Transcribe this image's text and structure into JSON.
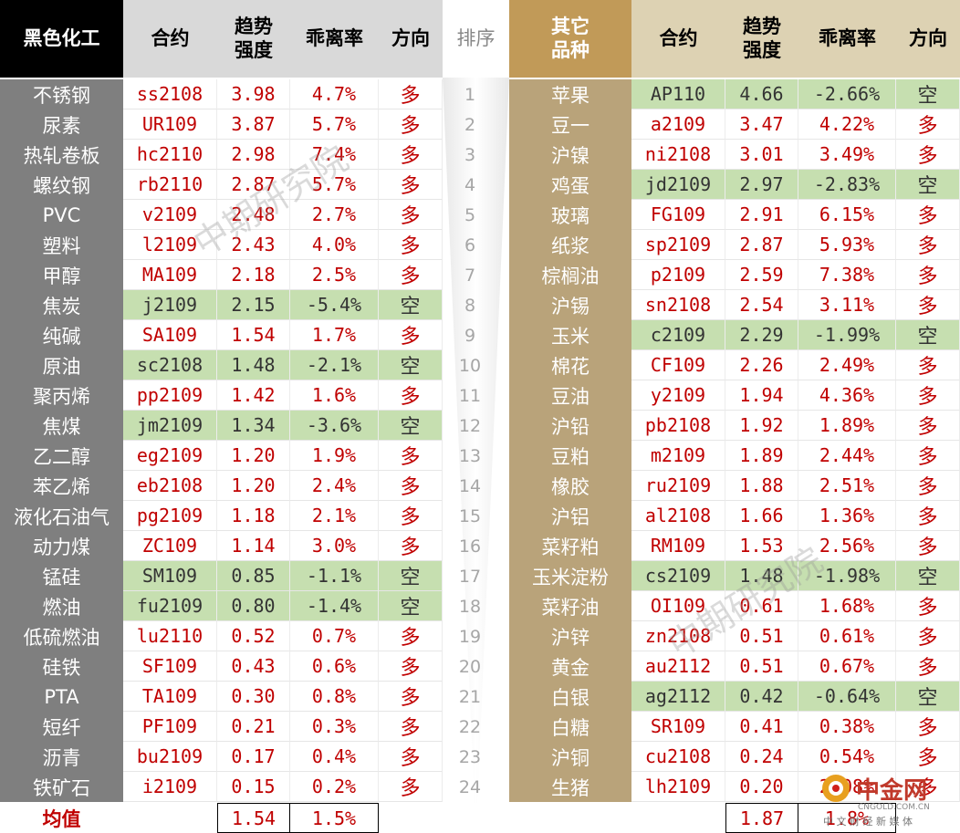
{
  "headers": {
    "left_category": "黑色化工",
    "contract": "合约",
    "trend_line1": "趋势",
    "trend_line2": "强度",
    "deviation": "乖离率",
    "direction": "方向",
    "rank": "排序",
    "right_category_line1": "其它",
    "right_category_line2": "品种"
  },
  "left_rows": [
    {
      "name": "不锈钢",
      "contract": "ss2108",
      "trend": "3.98",
      "deviation": "4.7%",
      "direction": "多"
    },
    {
      "name": "尿素",
      "contract": "UR109",
      "trend": "3.87",
      "deviation": "5.7%",
      "direction": "多"
    },
    {
      "name": "热轧卷板",
      "contract": "hc2110",
      "trend": "2.98",
      "deviation": "7.4%",
      "direction": "多"
    },
    {
      "name": "螺纹钢",
      "contract": "rb2110",
      "trend": "2.87",
      "deviation": "5.7%",
      "direction": "多"
    },
    {
      "name": "PVC",
      "contract": "v2109",
      "trend": "2.48",
      "deviation": "2.7%",
      "direction": "多"
    },
    {
      "name": "塑料",
      "contract": "l2109",
      "trend": "2.43",
      "deviation": "4.0%",
      "direction": "多"
    },
    {
      "name": "甲醇",
      "contract": "MA109",
      "trend": "2.18",
      "deviation": "2.5%",
      "direction": "多"
    },
    {
      "name": "焦炭",
      "contract": "j2109",
      "trend": "2.15",
      "deviation": "-5.4%",
      "direction": "空"
    },
    {
      "name": "纯碱",
      "contract": "SA109",
      "trend": "1.54",
      "deviation": "1.7%",
      "direction": "多"
    },
    {
      "name": "原油",
      "contract": "sc2108",
      "trend": "1.48",
      "deviation": "-2.1%",
      "direction": "空"
    },
    {
      "name": "聚丙烯",
      "contract": "pp2109",
      "trend": "1.42",
      "deviation": "1.6%",
      "direction": "多"
    },
    {
      "name": "焦煤",
      "contract": "jm2109",
      "trend": "1.34",
      "deviation": "-3.6%",
      "direction": "空"
    },
    {
      "name": "乙二醇",
      "contract": "eg2109",
      "trend": "1.20",
      "deviation": "1.9%",
      "direction": "多"
    },
    {
      "name": "苯乙烯",
      "contract": "eb2108",
      "trend": "1.20",
      "deviation": "2.4%",
      "direction": "多"
    },
    {
      "name": "液化石油气",
      "contract": "pg2109",
      "trend": "1.18",
      "deviation": "2.1%",
      "direction": "多"
    },
    {
      "name": "动力煤",
      "contract": "ZC109",
      "trend": "1.14",
      "deviation": "3.0%",
      "direction": "多"
    },
    {
      "name": "锰硅",
      "contract": "SM109",
      "trend": "0.85",
      "deviation": "-1.1%",
      "direction": "空"
    },
    {
      "name": "燃油",
      "contract": "fu2109",
      "trend": "0.80",
      "deviation": "-1.4%",
      "direction": "空"
    },
    {
      "name": "低硫燃油",
      "contract": "lu2110",
      "trend": "0.52",
      "deviation": "0.7%",
      "direction": "多"
    },
    {
      "name": "硅铁",
      "contract": "SF109",
      "trend": "0.43",
      "deviation": "0.6%",
      "direction": "多"
    },
    {
      "name": "PTA",
      "contract": "TA109",
      "trend": "0.30",
      "deviation": "0.8%",
      "direction": "多"
    },
    {
      "name": "短纤",
      "contract": "PF109",
      "trend": "0.21",
      "deviation": "0.3%",
      "direction": "多"
    },
    {
      "name": "沥青",
      "contract": "bu2109",
      "trend": "0.17",
      "deviation": "0.4%",
      "direction": "多"
    },
    {
      "name": "铁矿石",
      "contract": "i2109",
      "trend": "0.15",
      "deviation": "0.2%",
      "direction": "多"
    }
  ],
  "ranks": [
    "1",
    "2",
    "3",
    "4",
    "5",
    "6",
    "7",
    "8",
    "9",
    "10",
    "11",
    "12",
    "13",
    "14",
    "15",
    "16",
    "17",
    "18",
    "19",
    "20",
    "21",
    "22",
    "23",
    "24"
  ],
  "right_rows": [
    {
      "name": "苹果",
      "contract": "AP110",
      "trend": "4.66",
      "deviation": "-2.66%",
      "direction": "空"
    },
    {
      "name": "豆一",
      "contract": "a2109",
      "trend": "3.47",
      "deviation": "4.22%",
      "direction": "多"
    },
    {
      "name": "沪镍",
      "contract": "ni2108",
      "trend": "3.01",
      "deviation": "3.49%",
      "direction": "多"
    },
    {
      "name": "鸡蛋",
      "contract": "jd2109",
      "trend": "2.97",
      "deviation": "-2.83%",
      "direction": "空"
    },
    {
      "name": "玻璃",
      "contract": "FG109",
      "trend": "2.91",
      "deviation": "6.15%",
      "direction": "多"
    },
    {
      "name": "纸浆",
      "contract": "sp2109",
      "trend": "2.87",
      "deviation": "5.93%",
      "direction": "多"
    },
    {
      "name": "棕榈油",
      "contract": "p2109",
      "trend": "2.59",
      "deviation": "7.38%",
      "direction": "多"
    },
    {
      "name": "沪锡",
      "contract": "sn2108",
      "trend": "2.54",
      "deviation": "3.11%",
      "direction": "多"
    },
    {
      "name": "玉米",
      "contract": "c2109",
      "trend": "2.29",
      "deviation": "-1.99%",
      "direction": "空"
    },
    {
      "name": "棉花",
      "contract": "CF109",
      "trend": "2.26",
      "deviation": "2.49%",
      "direction": "多"
    },
    {
      "name": "豆油",
      "contract": "y2109",
      "trend": "1.94",
      "deviation": "4.36%",
      "direction": "多"
    },
    {
      "name": "沪铅",
      "contract": "pb2108",
      "trend": "1.92",
      "deviation": "1.89%",
      "direction": "多"
    },
    {
      "name": "豆粕",
      "contract": "m2109",
      "trend": "1.89",
      "deviation": "2.44%",
      "direction": "多"
    },
    {
      "name": "橡胶",
      "contract": "ru2109",
      "trend": "1.88",
      "deviation": "2.51%",
      "direction": "多"
    },
    {
      "name": "沪铝",
      "contract": "al2108",
      "trend": "1.66",
      "deviation": "1.36%",
      "direction": "多"
    },
    {
      "name": "菜籽粕",
      "contract": "RM109",
      "trend": "1.53",
      "deviation": "2.56%",
      "direction": "多"
    },
    {
      "name": "玉米淀粉",
      "contract": "cs2109",
      "trend": "1.48",
      "deviation": "-1.98%",
      "direction": "空"
    },
    {
      "name": "菜籽油",
      "contract": "OI109",
      "trend": "0.61",
      "deviation": "1.68%",
      "direction": "多"
    },
    {
      "name": "沪锌",
      "contract": "zn2108",
      "trend": "0.51",
      "deviation": "0.61%",
      "direction": "多"
    },
    {
      "name": "黄金",
      "contract": "au2112",
      "trend": "0.51",
      "deviation": "0.67%",
      "direction": "多"
    },
    {
      "name": "白银",
      "contract": "ag2112",
      "trend": "0.42",
      "deviation": "-0.64%",
      "direction": "空"
    },
    {
      "name": "白糖",
      "contract": "SR109",
      "trend": "0.41",
      "deviation": "0.38%",
      "direction": "多"
    },
    {
      "name": "沪铜",
      "contract": "cu2108",
      "trend": "0.24",
      "deviation": "0.54%",
      "direction": "多"
    },
    {
      "name": "生猪",
      "contract": "lh2109",
      "trend": "0.20",
      "deviation": "2.08%",
      "direction": "多"
    }
  ],
  "averages": {
    "label": "均值",
    "left_trend": "1.54",
    "left_deviation": "1.5%",
    "right_trend": "1.87",
    "right_deviation": "1.8%"
  },
  "watermark": "中期研究院",
  "logo": {
    "brand": "中金网",
    "url": "CNGOLD.COM.CN",
    "tagline": "中 文 财 经 新 媒 体"
  },
  "colors": {
    "long_row": "#ffffff",
    "short_row": "#c6dfb0",
    "value_red": "#c00000",
    "left_name_bg": "#7f7f7f",
    "right_name_bg": "#b9a37a",
    "right_header_bg": "#c19a58"
  }
}
